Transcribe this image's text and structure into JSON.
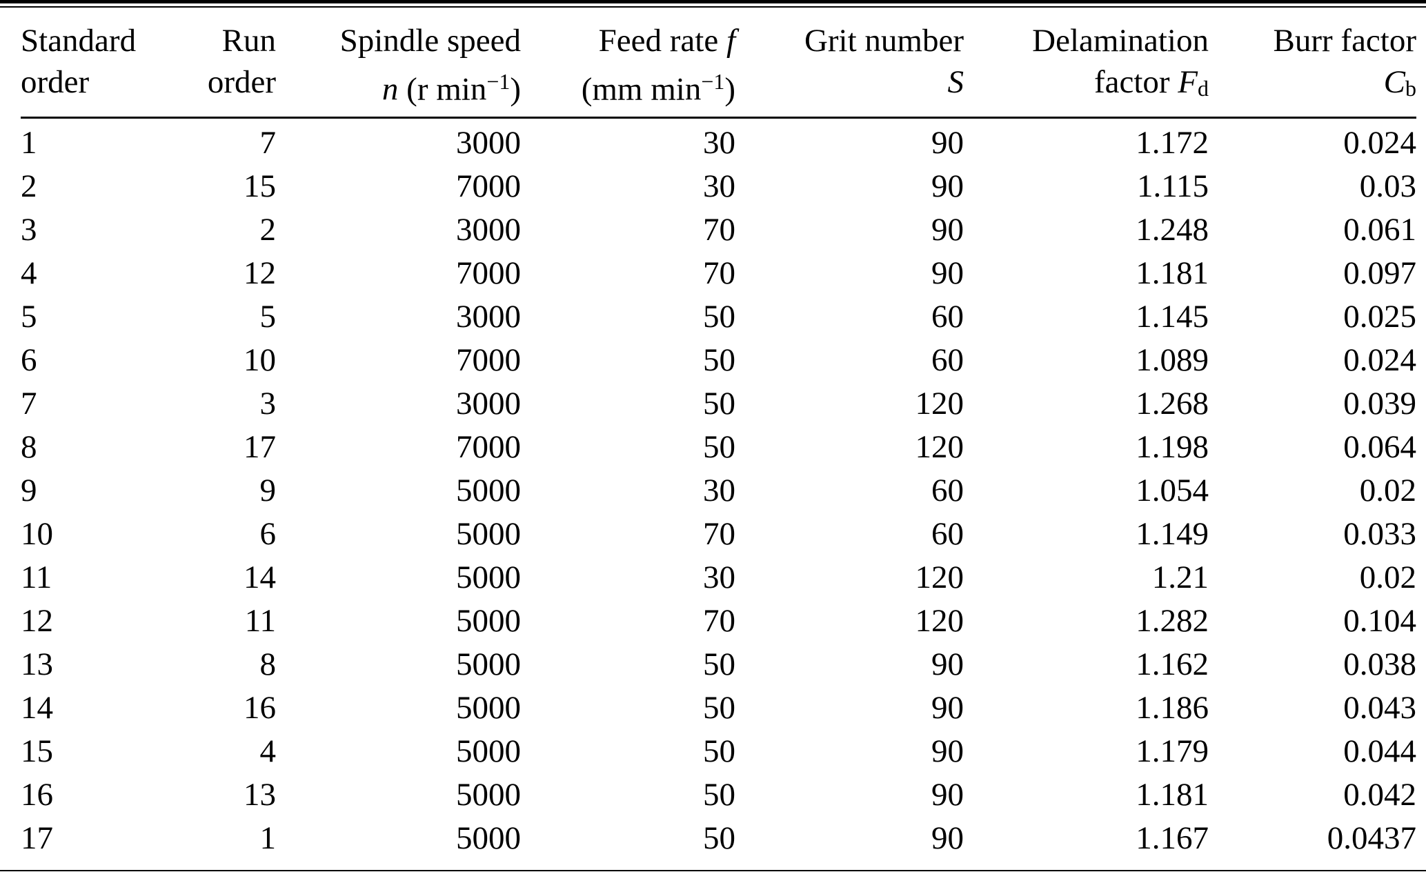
{
  "table": {
    "header": {
      "standard_order": {
        "line1": "Standard",
        "line2": "order"
      },
      "run_order": {
        "line1": "Run",
        "line2": "order"
      },
      "spindle_speed": {
        "line1": "Spindle speed",
        "var": "n",
        "unit_open": " (r min",
        "exponent": "−1",
        "unit_close": ")"
      },
      "feed_rate": {
        "line1": "Feed rate ",
        "var": "f",
        "unit_open": "(mm min",
        "exponent": "−1",
        "unit_close": ")"
      },
      "grit_number": {
        "line1": "Grit number",
        "var": "S"
      },
      "delamination_factor": {
        "line1": "Delamination",
        "line2_pre": "factor ",
        "var": "F",
        "sub": "d"
      },
      "burr_factor": {
        "line1": "Burr factor",
        "var": "C",
        "sub": "b"
      }
    },
    "column_keys": [
      "standard-order",
      "run-order",
      "spindle-speed",
      "feed-rate",
      "grit-number",
      "delamination-factor",
      "burr-factor"
    ],
    "rows": [
      [
        "1",
        "7",
        "3000",
        "30",
        "90",
        "1.172",
        "0.024"
      ],
      [
        "2",
        "15",
        "7000",
        "30",
        "90",
        "1.115",
        "0.03"
      ],
      [
        "3",
        "2",
        "3000",
        "70",
        "90",
        "1.248",
        "0.061"
      ],
      [
        "4",
        "12",
        "7000",
        "70",
        "90",
        "1.181",
        "0.097"
      ],
      [
        "5",
        "5",
        "3000",
        "50",
        "60",
        "1.145",
        "0.025"
      ],
      [
        "6",
        "10",
        "7000",
        "50",
        "60",
        "1.089",
        "0.024"
      ],
      [
        "7",
        "3",
        "3000",
        "50",
        "120",
        "1.268",
        "0.039"
      ],
      [
        "8",
        "17",
        "7000",
        "50",
        "120",
        "1.198",
        "0.064"
      ],
      [
        "9",
        "9",
        "5000",
        "30",
        "60",
        "1.054",
        "0.02"
      ],
      [
        "10",
        "6",
        "5000",
        "70",
        "60",
        "1.149",
        "0.033"
      ],
      [
        "11",
        "14",
        "5000",
        "30",
        "120",
        "1.21",
        "0.02"
      ],
      [
        "12",
        "11",
        "5000",
        "70",
        "120",
        "1.282",
        "0.104"
      ],
      [
        "13",
        "8",
        "5000",
        "50",
        "90",
        "1.162",
        "0.038"
      ],
      [
        "14",
        "16",
        "5000",
        "50",
        "90",
        "1.186",
        "0.043"
      ],
      [
        "15",
        "4",
        "5000",
        "50",
        "90",
        "1.179",
        "0.044"
      ],
      [
        "16",
        "13",
        "5000",
        "50",
        "90",
        "1.181",
        "0.042"
      ],
      [
        "17",
        "1",
        "5000",
        "50",
        "90",
        "1.167",
        "0.0437"
      ]
    ]
  }
}
